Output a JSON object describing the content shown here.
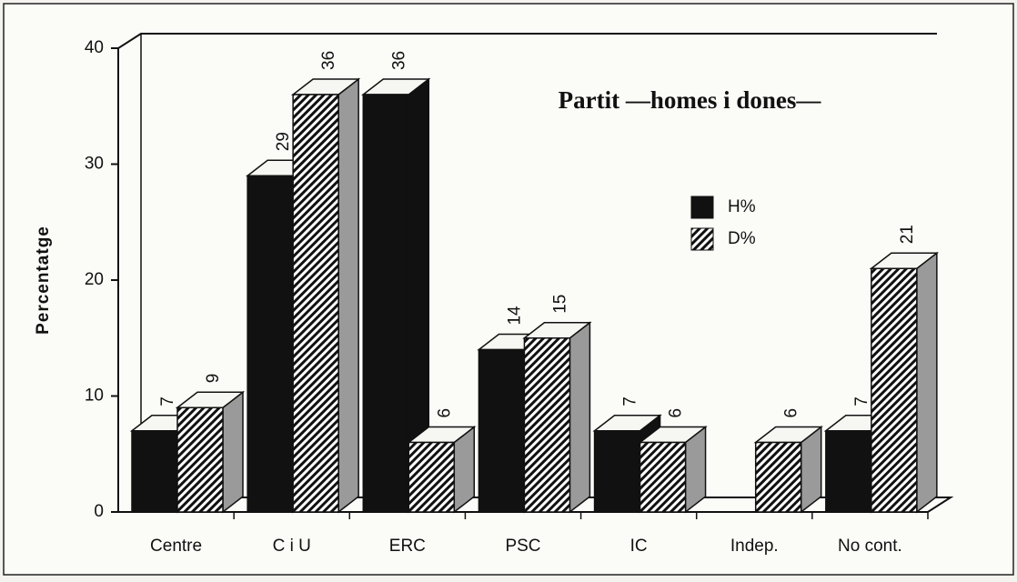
{
  "chart_data": {
    "type": "bar3d",
    "title": "Partit —homes i dones—",
    "ylabel": "Percentatge",
    "categories": [
      "Centre",
      "C i U",
      "ERC",
      "PSC",
      "IC",
      "Indep.",
      "No cont."
    ],
    "series": [
      {
        "name": "H%",
        "color": "#111111",
        "values": [
          7,
          29,
          36,
          14,
          7,
          null,
          7
        ]
      },
      {
        "name": "D%",
        "color": "hatch",
        "values": [
          9,
          36,
          6,
          15,
          6,
          6,
          21
        ]
      }
    ],
    "ylim": [
      0,
      40
    ],
    "yticks": [
      0,
      10,
      20,
      30,
      40
    ]
  }
}
